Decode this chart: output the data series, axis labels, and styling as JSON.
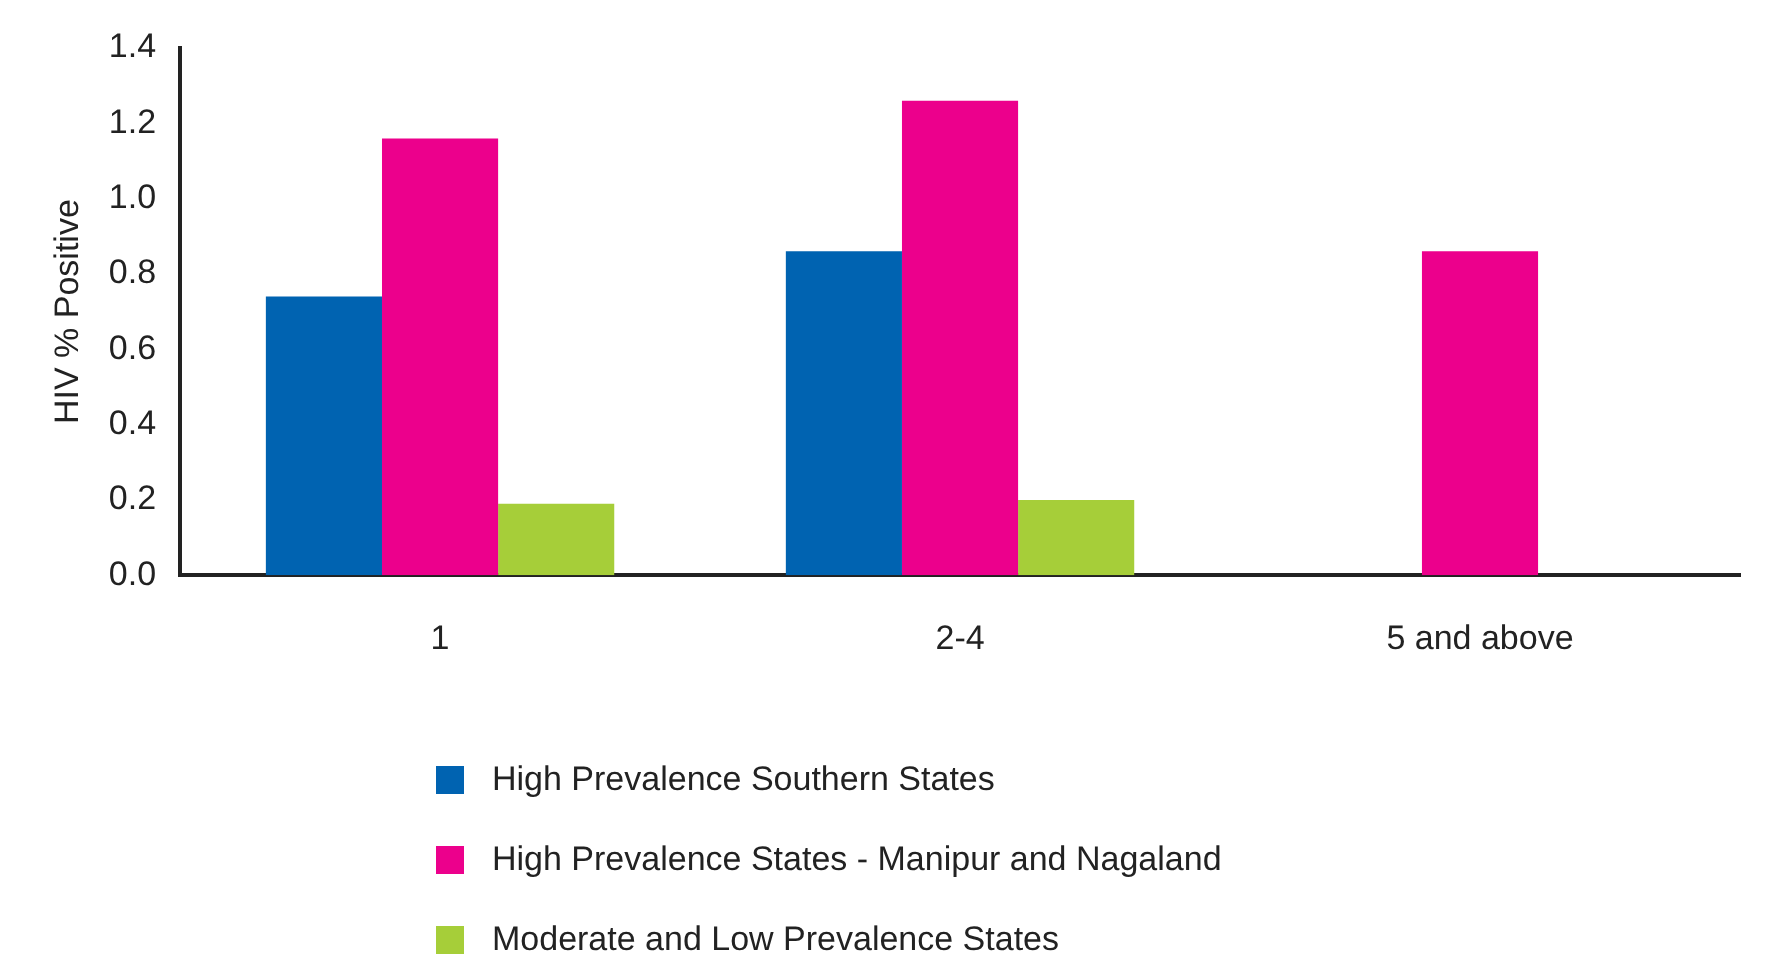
{
  "chart_data": {
    "type": "bar",
    "ylabel": "HIV % Positive",
    "categories": [
      "1",
      "2-4",
      "5 and above"
    ],
    "series": [
      {
        "name": "High Prevalence Southern States",
        "color": "#0063b1",
        "values": [
          0.74,
          0.86,
          null
        ]
      },
      {
        "name": "High Prevalence States - Manipur and Nagaland",
        "color": "#ec008c",
        "values": [
          1.16,
          1.26,
          0.86
        ]
      },
      {
        "name": "Moderate and Low Prevalence States",
        "color": "#a6ce39",
        "values": [
          0.19,
          0.2,
          null
        ]
      }
    ],
    "ylim": [
      0,
      1.4
    ],
    "yticks": [
      {
        "value": 0,
        "label": "0.0"
      },
      {
        "value": 0.2,
        "label": "0.2"
      },
      {
        "value": 0.4,
        "label": "0.4"
      },
      {
        "value": 0.6,
        "label": "0.6"
      },
      {
        "value": 0.8,
        "label": "0.8"
      },
      {
        "value": 1,
        "label": "1.0"
      },
      {
        "value": 1.2,
        "label": "1.2"
      },
      {
        "value": 1.4,
        "label": "1.4"
      }
    ],
    "grid": false,
    "legend": "bottom"
  }
}
